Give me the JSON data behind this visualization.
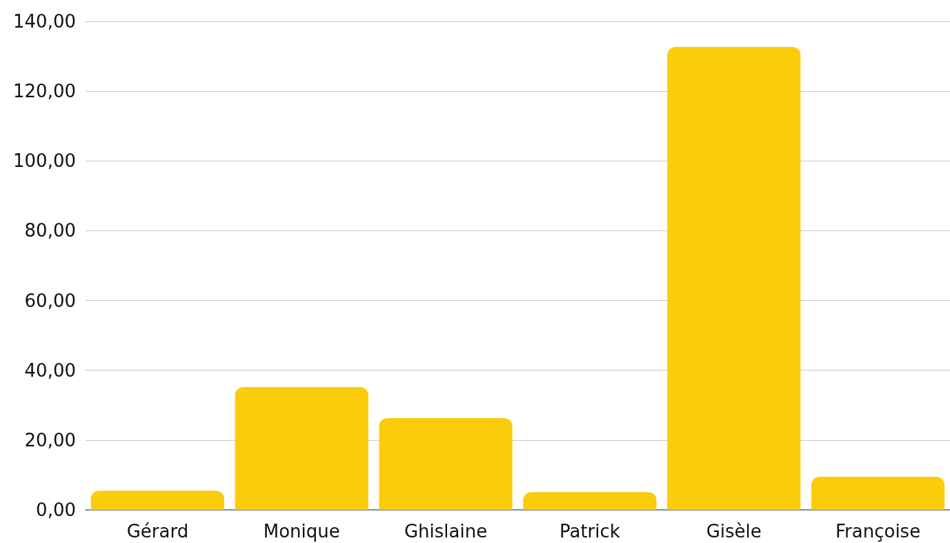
{
  "chart_data": {
    "type": "bar",
    "categories": [
      "Gérard",
      "Monique",
      "Ghislaine",
      "Patrick",
      "Gisèle",
      "Françoise"
    ],
    "series": [
      {
        "color": "#facc0c",
        "values": [
          5.5,
          35.2,
          26.3,
          5.1,
          132.7,
          9.5
        ]
      }
    ],
    "ylim": [
      0,
      140
    ],
    "yticks": [
      {
        "value": 0,
        "label": "0,00"
      },
      {
        "value": 20,
        "label": "20,00"
      },
      {
        "value": 40,
        "label": "40,00"
      },
      {
        "value": 60,
        "label": "60,00"
      },
      {
        "value": 80,
        "label": "80,00"
      },
      {
        "value": 100,
        "label": "100,00"
      },
      {
        "value": 120,
        "label": "120,00"
      },
      {
        "value": 140,
        "label": "140,00"
      }
    ],
    "grid": "y"
  }
}
